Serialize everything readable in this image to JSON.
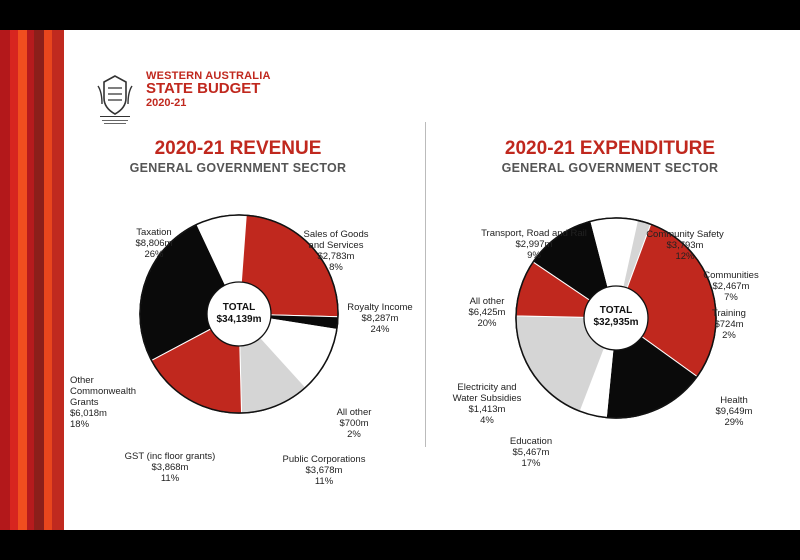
{
  "header": {
    "crest_caption": "GOVERNMENT OF WESTERN AUSTRALIA",
    "line1": "WESTERN AUSTRALIA",
    "line2": "STATE BUDGET",
    "line3": "2020-21"
  },
  "colors": {
    "red": "#c0281e",
    "black": "#0a0a0a",
    "white": "#ffffff",
    "grey": "#d5d5d5",
    "stripes": [
      "#b3181b",
      "#d7251f",
      "#f04e1f",
      "#b51b1d",
      "#8b1f1a",
      "#e8461d",
      "#c02a1f"
    ]
  },
  "chart_data": [
    {
      "type": "pie",
      "title": "2020-21 REVENUE",
      "subtitle": "GENERAL GOVERNMENT SECTOR",
      "center_label": [
        "TOTAL",
        "$34,139m"
      ],
      "slices": [
        {
          "name": "Taxation",
          "value": 8806,
          "amount": "$8,806m",
          "percent": "26%",
          "color": "black"
        },
        {
          "name": "Sales of Goods and Services",
          "value": 2783,
          "amount": "$2,783m",
          "percent": "8%",
          "color": "white"
        },
        {
          "name": "Royalty Income",
          "value": 8287,
          "amount": "$8,287m",
          "percent": "24%",
          "color": "red"
        },
        {
          "name": "All other",
          "value": 700,
          "amount": "$700m",
          "percent": "2%",
          "color": "black"
        },
        {
          "name": "Public Corporations",
          "value": 3678,
          "amount": "$3,678m",
          "percent": "11%",
          "color": "white"
        },
        {
          "name": "GST (inc floor grants)",
          "value": 3868,
          "amount": "$3,868m",
          "percent": "11%",
          "color": "grey"
        },
        {
          "name": "Other Commonwealth Grants",
          "value": 6018,
          "amount": "$6,018m",
          "percent": "18%",
          "color": "red"
        }
      ]
    },
    {
      "type": "pie",
      "title": "2020-21 EXPENDITURE",
      "subtitle": "GENERAL GOVERNMENT SECTOR",
      "center_label": [
        "TOTAL",
        "$32,935m"
      ],
      "slices": [
        {
          "name": "Community Safety",
          "value": 3793,
          "amount": "$3,793m",
          "percent": "12%",
          "color": "black"
        },
        {
          "name": "Communities",
          "value": 2467,
          "amount": "$2,467m",
          "percent": "7%",
          "color": "white"
        },
        {
          "name": "Training",
          "value": 724,
          "amount": "$724m",
          "percent": "2%",
          "color": "grey"
        },
        {
          "name": "Health",
          "value": 9649,
          "amount": "$9,649m",
          "percent": "29%",
          "color": "red"
        },
        {
          "name": "Education",
          "value": 5467,
          "amount": "$5,467m",
          "percent": "17%",
          "color": "black"
        },
        {
          "name": "Electricity and Water Subsidies",
          "value": 1413,
          "amount": "$1,413m",
          "percent": "4%",
          "color": "white"
        },
        {
          "name": "All other",
          "value": 6425,
          "amount": "$6,425m",
          "percent": "20%",
          "color": "grey"
        },
        {
          "name": "Transport, Road and Rail",
          "value": 2997,
          "amount": "$2,997m",
          "percent": "9%",
          "color": "red"
        }
      ]
    }
  ],
  "labels": {
    "revenue": [
      [
        "Taxation",
        "$8,806m",
        "26%"
      ],
      [
        "Sales of Goods",
        "and Services",
        "$2,783m",
        "8%"
      ],
      [
        "Royalty Income",
        "$8,287m",
        "24%"
      ],
      [
        "All other",
        "$700m",
        "2%"
      ],
      [
        "Public Corporations",
        "$3,678m",
        "11%"
      ],
      [
        "GST (inc floor grants)",
        "$3,868m",
        "11%"
      ],
      [
        "Other",
        "Commonwealth",
        "Grants",
        "$6,018m",
        "18%"
      ]
    ],
    "expenditure": [
      [
        "Community Safety",
        "$3,793m",
        "12%"
      ],
      [
        "Communities",
        "$2,467m",
        "7%"
      ],
      [
        "Training",
        "$724m",
        "2%"
      ],
      [
        "Health",
        "$9,649m",
        "29%"
      ],
      [
        "Education",
        "$5,467m",
        "17%"
      ],
      [
        "Electricity and",
        "Water Subsidies",
        "$1,413m",
        "4%"
      ],
      [
        "All other",
        "$6,425m",
        "20%"
      ],
      [
        "Transport, Road and Rail",
        "$2,997m",
        "9%"
      ]
    ]
  }
}
